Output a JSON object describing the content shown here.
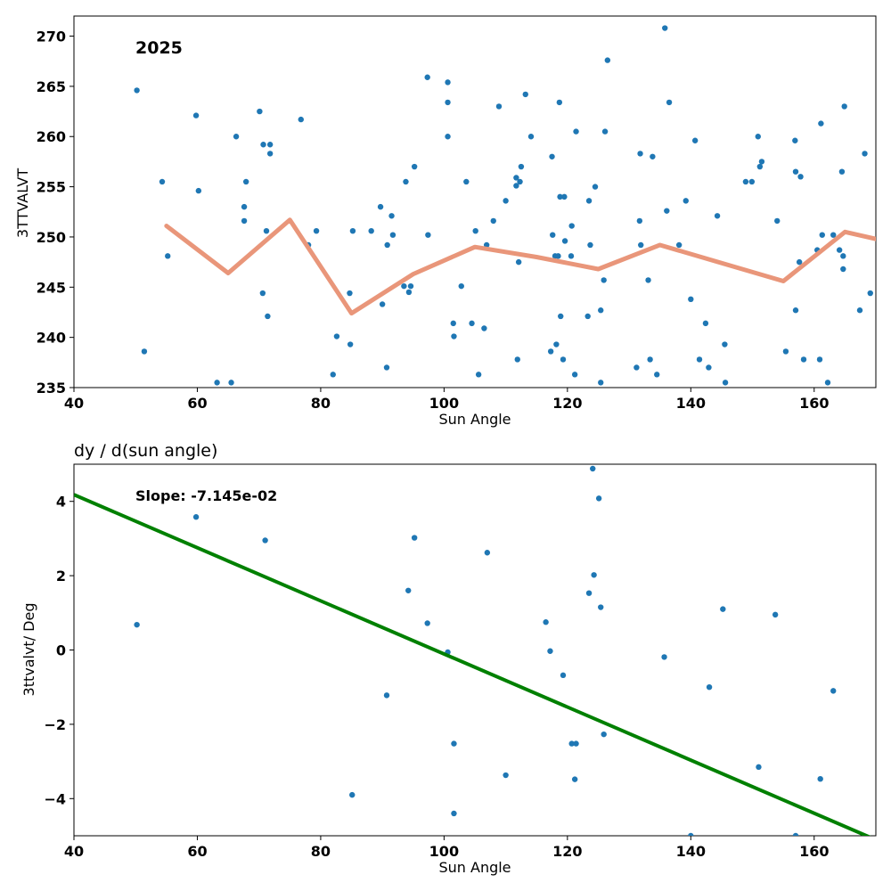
{
  "chart_data": [
    {
      "type": "scatter",
      "annotation": "2025",
      "xlabel": "Sun Angle",
      "ylabel": "3TTVALVT",
      "xlim": [
        40,
        170
      ],
      "ylim": [
        235,
        272
      ],
      "xticks": [
        40,
        60,
        80,
        100,
        120,
        140,
        160
      ],
      "yticks": [
        235,
        240,
        245,
        250,
        255,
        260,
        265,
        270
      ],
      "grid": false,
      "point_color": "#1f77b4",
      "points": [
        [
          50.2,
          264.6
        ],
        [
          51.4,
          238.6
        ],
        [
          54.3,
          255.5
        ],
        [
          55.2,
          248.1
        ],
        [
          59.8,
          262.1
        ],
        [
          60.2,
          254.6
        ],
        [
          63.2,
          235.5
        ],
        [
          65.5,
          235.5
        ],
        [
          66.3,
          260.0
        ],
        [
          67.6,
          253.0
        ],
        [
          67.6,
          251.6
        ],
        [
          67.9,
          255.5
        ],
        [
          70.1,
          262.5
        ],
        [
          70.6,
          244.4
        ],
        [
          70.7,
          259.2
        ],
        [
          71.2,
          250.6
        ],
        [
          71.4,
          242.1
        ],
        [
          71.8,
          259.2
        ],
        [
          71.8,
          258.3
        ],
        [
          76.8,
          261.7
        ],
        [
          78.0,
          249.2
        ],
        [
          79.3,
          250.6
        ],
        [
          82.0,
          236.3
        ],
        [
          82.6,
          240.1
        ],
        [
          84.7,
          244.4
        ],
        [
          84.8,
          239.3
        ],
        [
          85.2,
          250.6
        ],
        [
          88.2,
          250.6
        ],
        [
          89.7,
          253.0
        ],
        [
          90.0,
          243.3
        ],
        [
          90.7,
          237.0
        ],
        [
          90.8,
          249.2
        ],
        [
          91.5,
          252.1
        ],
        [
          91.7,
          250.2
        ],
        [
          93.5,
          245.1
        ],
        [
          93.8,
          255.5
        ],
        [
          94.3,
          244.5
        ],
        [
          94.6,
          245.1
        ],
        [
          95.2,
          257.0
        ],
        [
          97.3,
          265.9
        ],
        [
          97.4,
          250.2
        ],
        [
          100.6,
          265.4
        ],
        [
          100.6,
          263.4
        ],
        [
          100.6,
          260.0
        ],
        [
          101.5,
          241.4
        ],
        [
          101.6,
          240.1
        ],
        [
          102.8,
          245.1
        ],
        [
          103.6,
          255.5
        ],
        [
          104.5,
          241.4
        ],
        [
          105.1,
          250.6
        ],
        [
          105.6,
          236.3
        ],
        [
          106.5,
          240.9
        ],
        [
          106.9,
          249.2
        ],
        [
          108.0,
          251.6
        ],
        [
          108.9,
          263.0
        ],
        [
          110.0,
          253.6
        ],
        [
          111.7,
          255.9
        ],
        [
          111.7,
          255.1
        ],
        [
          111.9,
          237.8
        ],
        [
          112.1,
          247.5
        ],
        [
          112.3,
          255.5
        ],
        [
          112.5,
          257.0
        ],
        [
          113.2,
          264.2
        ],
        [
          114.1,
          260.0
        ],
        [
          117.3,
          238.6
        ],
        [
          117.5,
          258.0
        ],
        [
          117.6,
          250.2
        ],
        [
          118.0,
          248.1
        ],
        [
          118.2,
          239.3
        ],
        [
          118.5,
          248.1
        ],
        [
          118.7,
          263.4
        ],
        [
          118.8,
          254.0
        ],
        [
          118.9,
          242.1
        ],
        [
          119.3,
          237.8
        ],
        [
          119.5,
          254.0
        ],
        [
          119.6,
          249.6
        ],
        [
          120.6,
          248.1
        ],
        [
          120.7,
          251.1
        ],
        [
          121.2,
          236.3
        ],
        [
          121.4,
          260.5
        ],
        [
          123.3,
          242.1
        ],
        [
          123.5,
          253.6
        ],
        [
          123.7,
          249.2
        ],
        [
          124.5,
          255.0
        ],
        [
          125.4,
          242.7
        ],
        [
          125.4,
          235.5
        ],
        [
          125.9,
          245.7
        ],
        [
          126.1,
          260.5
        ],
        [
          126.5,
          267.6
        ],
        [
          131.2,
          237.0
        ],
        [
          131.7,
          251.6
        ],
        [
          131.8,
          258.3
        ],
        [
          131.9,
          249.2
        ],
        [
          133.1,
          245.7
        ],
        [
          133.4,
          237.8
        ],
        [
          133.8,
          258.0
        ],
        [
          134.5,
          236.3
        ],
        [
          135.8,
          270.8
        ],
        [
          136.1,
          252.6
        ],
        [
          136.5,
          263.4
        ],
        [
          138.1,
          249.2
        ],
        [
          139.2,
          253.6
        ],
        [
          140.0,
          243.8
        ],
        [
          140.7,
          259.6
        ],
        [
          141.4,
          237.8
        ],
        [
          142.4,
          241.4
        ],
        [
          142.9,
          237.0
        ],
        [
          144.3,
          252.1
        ],
        [
          145.5,
          239.3
        ],
        [
          145.6,
          235.5
        ],
        [
          148.9,
          255.5
        ],
        [
          149.9,
          255.5
        ],
        [
          150.9,
          260.0
        ],
        [
          151.2,
          257.0
        ],
        [
          151.5,
          257.5
        ],
        [
          154.0,
          251.6
        ],
        [
          155.4,
          238.6
        ],
        [
          156.9,
          259.6
        ],
        [
          157.0,
          256.5
        ],
        [
          157.0,
          242.7
        ],
        [
          157.6,
          247.5
        ],
        [
          157.8,
          256.0
        ],
        [
          158.3,
          237.8
        ],
        [
          160.5,
          248.7
        ],
        [
          160.9,
          237.8
        ],
        [
          161.1,
          261.3
        ],
        [
          161.3,
          250.2
        ],
        [
          162.2,
          235.5
        ],
        [
          163.1,
          250.2
        ],
        [
          164.1,
          248.7
        ],
        [
          164.5,
          256.5
        ],
        [
          164.7,
          246.8
        ],
        [
          164.7,
          248.1
        ],
        [
          164.9,
          263.0
        ],
        [
          167.4,
          242.7
        ],
        [
          168.2,
          258.3
        ],
        [
          169.1,
          244.4
        ]
      ],
      "trend_color": "#e9967a",
      "trend": [
        [
          55,
          251.1
        ],
        [
          65,
          246.4
        ],
        [
          75,
          251.7
        ],
        [
          85,
          242.4
        ],
        [
          95,
          246.3
        ],
        [
          105,
          249.0
        ],
        [
          115,
          248.0
        ],
        [
          125,
          246.8
        ],
        [
          135,
          249.2
        ],
        [
          145,
          247.4
        ],
        [
          155,
          245.6
        ],
        [
          165,
          250.5
        ],
        [
          170,
          249.8
        ]
      ]
    },
    {
      "type": "scatter",
      "title": "dy / d(sun angle)",
      "annotation": "Slope: -7.145e-02",
      "xlabel": "Sun Angle",
      "ylabel": "3ttvalvt/ Deg",
      "xlim": [
        40,
        170
      ],
      "ylim": [
        -5,
        5
      ],
      "xticks": [
        40,
        60,
        80,
        100,
        120,
        140,
        160
      ],
      "yticks": [
        -4,
        -2,
        0,
        2,
        4
      ],
      "grid": false,
      "point_color": "#1f77b4",
      "points": [
        [
          50.2,
          0.68
        ],
        [
          59.8,
          3.58
        ],
        [
          71.0,
          2.95
        ],
        [
          85.1,
          -3.9
        ],
        [
          90.7,
          -1.22
        ],
        [
          94.2,
          1.6
        ],
        [
          95.2,
          3.02
        ],
        [
          97.3,
          0.72
        ],
        [
          100.6,
          -0.06
        ],
        [
          101.6,
          -2.52
        ],
        [
          101.6,
          -4.4
        ],
        [
          107.0,
          2.62
        ],
        [
          110.0,
          -3.37
        ],
        [
          116.5,
          0.75
        ],
        [
          117.2,
          -0.03
        ],
        [
          119.3,
          -0.68
        ],
        [
          120.7,
          -2.52
        ],
        [
          121.2,
          -3.48
        ],
        [
          121.4,
          -2.52
        ],
        [
          123.5,
          1.53
        ],
        [
          124.1,
          4.88
        ],
        [
          124.3,
          2.02
        ],
        [
          125.1,
          4.08
        ],
        [
          125.4,
          1.15
        ],
        [
          125.9,
          -2.27
        ],
        [
          135.7,
          -0.19
        ],
        [
          140.0,
          -5.0
        ],
        [
          143.0,
          -1.0
        ],
        [
          145.2,
          1.1
        ],
        [
          151.0,
          -3.15
        ],
        [
          153.7,
          0.95
        ],
        [
          157.0,
          -5.0
        ],
        [
          161.0,
          -3.47
        ],
        [
          163.1,
          -1.1
        ]
      ],
      "fit_color": "#008000",
      "fit_line": {
        "slope": -0.07145,
        "intercept": 7.038
      }
    }
  ]
}
